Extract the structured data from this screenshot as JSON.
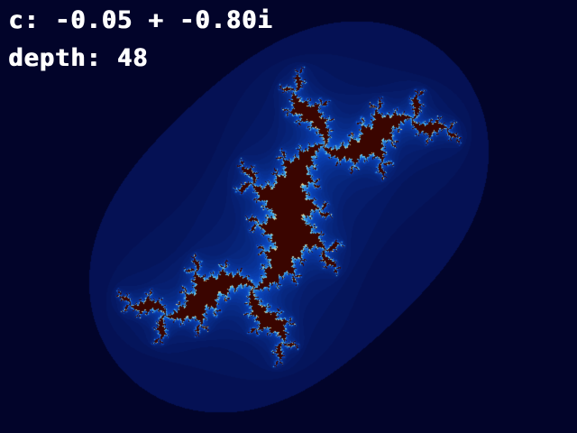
{
  "hud": {
    "c_text": "c: -0.05 + -0.80i",
    "depth_text": "depth: 48"
  },
  "fractal": {
    "c_re": -0.05,
    "c_im": -0.8,
    "max_iter": 48,
    "colors": {
      "background": "#02042a",
      "interior": "#3a0500",
      "edge": "#ffd080",
      "glow": "#1e8cff"
    }
  }
}
